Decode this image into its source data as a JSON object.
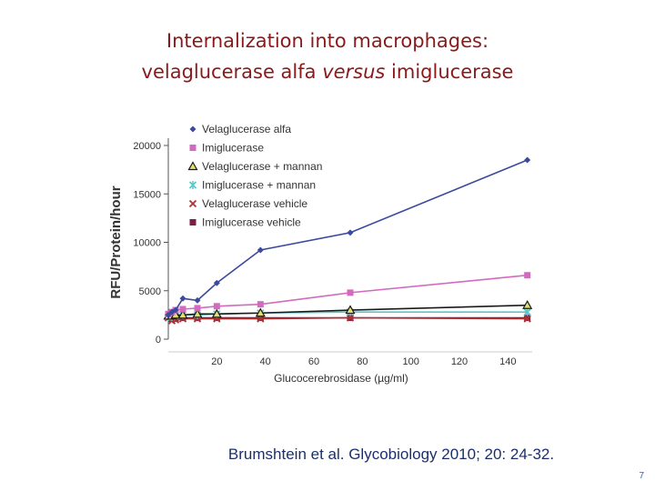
{
  "slide": {
    "title_line1": "Internalization into macrophages:",
    "title_line2_part1": "velaglucerase alfa ",
    "title_line2_italic": "versus",
    "title_line2_part2": " imiglucerase",
    "citation": "Brumshtein et al. Glycobiology 2010; 20: 24-32.",
    "page_number": "7"
  },
  "chart_data": {
    "type": "line",
    "title": "",
    "xlabel": "Glucocerebrosidase (µg/ml)",
    "ylabel": "RFU/Protein/hour",
    "xlim": [
      0,
      150
    ],
    "ylim": [
      0,
      20000
    ],
    "xticks": [
      20,
      40,
      60,
      80,
      100,
      120,
      140
    ],
    "yticks": [
      0,
      5000,
      10000,
      15000,
      20000
    ],
    "legend_position": "top-left",
    "grid": false,
    "series": [
      {
        "name": "Velaglucerase alfa",
        "color": "#3c4a9e",
        "marker": "diamond",
        "x": [
          0,
          1.5,
          3,
          6,
          12,
          20,
          38,
          75,
          148
        ],
        "y": [
          2500,
          2800,
          3000,
          4200,
          4000,
          5800,
          9200,
          11000,
          18500
        ]
      },
      {
        "name": "Imiglucerase",
        "color": "#d36ac0",
        "marker": "square",
        "x": [
          0,
          1.5,
          3,
          6,
          12,
          20,
          38,
          75,
          148
        ],
        "y": [
          2600,
          2800,
          3000,
          3100,
          3200,
          3400,
          3600,
          4800,
          6600
        ]
      },
      {
        "name": "Velaglucerase + mannan",
        "color": "#1a1a1a",
        "marker": "triangle",
        "x": [
          0,
          1.5,
          3,
          6,
          12,
          20,
          38,
          75,
          148
        ],
        "y": [
          2400,
          2400,
          2500,
          2500,
          2600,
          2600,
          2700,
          3000,
          3500
        ]
      },
      {
        "name": "Imiglucerase + mannan",
        "color": "#5bc8c8",
        "marker": "star",
        "x": [
          0,
          1.5,
          3,
          6,
          12,
          20,
          38,
          75,
          148
        ],
        "y": [
          2300,
          2300,
          2400,
          2500,
          2500,
          2600,
          2700,
          2800,
          2800
        ]
      },
      {
        "name": "Velaglucerase vehicle",
        "color": "#b03030",
        "marker": "x",
        "x": [
          0,
          1.5,
          3,
          6,
          12,
          20,
          38,
          75,
          148
        ],
        "y": [
          2200,
          1900,
          2000,
          2100,
          2100,
          2100,
          2100,
          2200,
          2100
        ]
      },
      {
        "name": "Imiglucerase vehicle",
        "color": "#7a1e4a",
        "marker": "square",
        "x": [
          0,
          1.5,
          3,
          6,
          12,
          20,
          38,
          75,
          148
        ],
        "y": [
          2300,
          2100,
          2100,
          2200,
          2200,
          2200,
          2200,
          2200,
          2200
        ]
      }
    ]
  }
}
